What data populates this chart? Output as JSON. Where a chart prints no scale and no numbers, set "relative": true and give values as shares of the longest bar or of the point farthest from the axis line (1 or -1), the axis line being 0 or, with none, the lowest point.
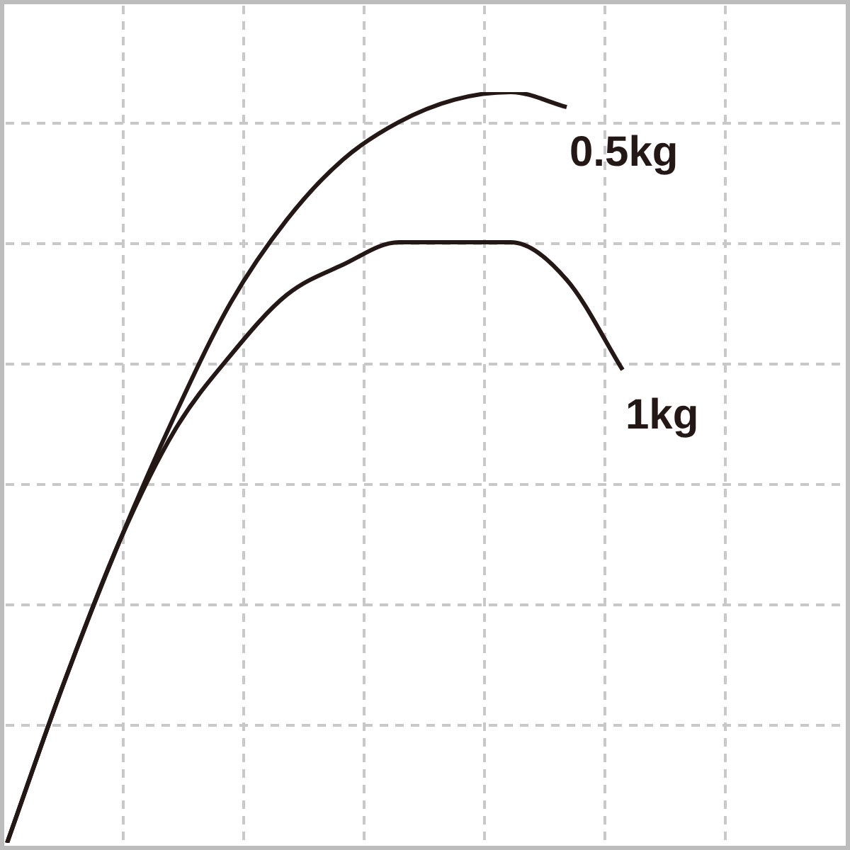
{
  "chart_data": {
    "type": "line",
    "relative": true,
    "grid": true,
    "legend": false,
    "marker": "none",
    "line_style": "solid",
    "categories": [
      null,
      null,
      null,
      null,
      null,
      null,
      null,
      null,
      null,
      null,
      null,
      null,
      null,
      null,
      null,
      null
    ],
    "series": [
      {
        "name": "0.5kg",
        "color": "#231815",
        "values": [
          0,
          0.21,
          0.4,
          0.57,
          0.72,
          0.83,
          0.91,
          0.96,
          0.99,
          1.0,
          0.98,
          null,
          null,
          null,
          null,
          null
        ]
      },
      {
        "name": "1kg",
        "color": "#231815",
        "values": [
          0,
          0.21,
          0.4,
          0.55,
          0.65,
          0.73,
          0.77,
          0.8,
          0.8,
          0.8,
          0.75,
          0.63,
          null,
          null,
          null,
          null
        ]
      }
    ]
  }
}
